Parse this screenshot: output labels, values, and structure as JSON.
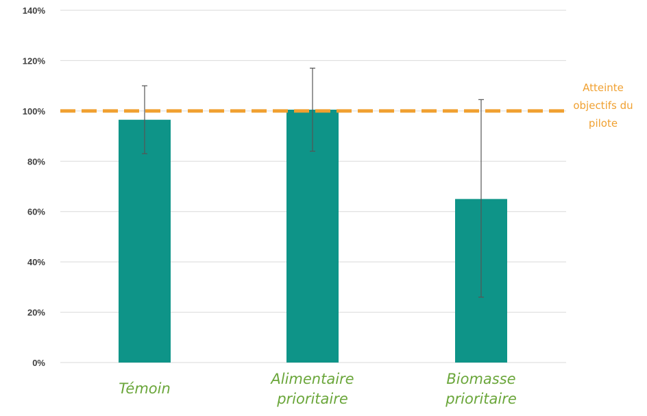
{
  "chart_data": {
    "type": "bar",
    "categories": [
      [
        "Témoin"
      ],
      [
        "Alimentaire",
        "prioritaire"
      ],
      [
        "Biomasse",
        "prioritaire"
      ]
    ],
    "values": [
      96.5,
      100.5,
      65
    ],
    "error_bars": [
      {
        "low": 83,
        "high": 110
      },
      {
        "low": 84,
        "high": 117
      },
      {
        "low": 26,
        "high": 104.5
      }
    ],
    "ylim": [
      0,
      140
    ],
    "yticks": [
      0,
      20,
      40,
      60,
      80,
      100,
      120,
      140
    ],
    "ytick_labels": [
      "0%",
      "20%",
      "40%",
      "60%",
      "80%",
      "100%",
      "120%",
      "140%"
    ],
    "grid": true,
    "reference_line": {
      "value": 100,
      "label_lines": [
        "Atteinte",
        "objectifs du",
        "pilote"
      ],
      "color": "#f0a030",
      "style": "dashed"
    },
    "colors": {
      "bar": "#0e9488",
      "error_bar": "#555555",
      "grid": "#d9d9d9",
      "category_text": "#6aa63a",
      "tick_text": "#404040"
    }
  }
}
